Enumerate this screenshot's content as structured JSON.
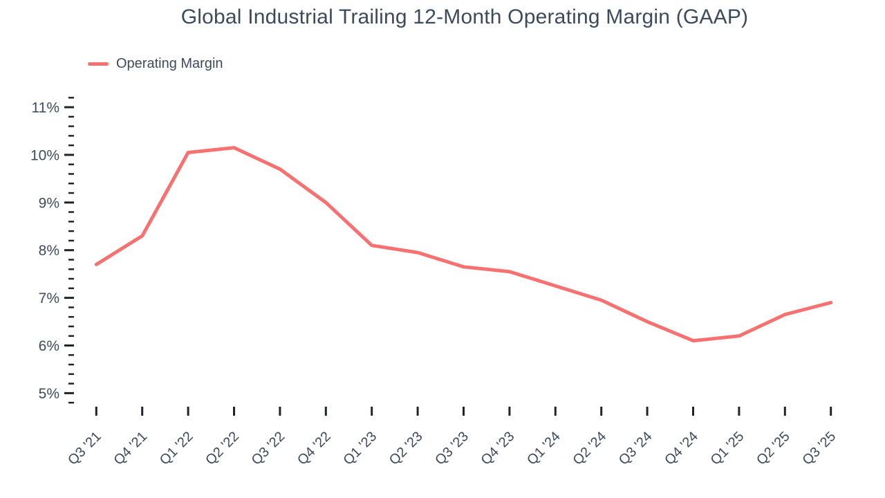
{
  "colors": {
    "line": "#F87171",
    "text": "#3D4A5C",
    "tick": "#1F2328",
    "background": "#FFFFFF"
  },
  "chart_data": {
    "type": "line",
    "title": "Global Industrial Trailing 12-Month Operating Margin (GAAP)",
    "legend_position": "top-left",
    "grid": false,
    "categories": [
      "Q3 '21",
      "Q4 '21",
      "Q1 '22",
      "Q2 '22",
      "Q3 '22",
      "Q4 '22",
      "Q1 '23",
      "Q2 '23",
      "Q3 '23",
      "Q4 '23",
      "Q1 '24",
      "Q2 '24",
      "Q3 '24",
      "Q4 '24",
      "Q1 '25",
      "Q2 '25",
      "Q3 '25"
    ],
    "series": [
      {
        "name": "Operating Margin",
        "color": "#F87171",
        "values": [
          7.7,
          8.3,
          10.05,
          10.15,
          9.7,
          9.0,
          8.1,
          7.95,
          7.65,
          7.55,
          7.25,
          6.95,
          6.5,
          6.1,
          6.2,
          6.65,
          6.9
        ]
      }
    ],
    "xlabel": "",
    "ylabel": "",
    "ylim": [
      4.8,
      11.2
    ],
    "y_major_step": 1,
    "y_minor_step": 0.2,
    "y_major_labels": [
      "5%",
      "6%",
      "7%",
      "8%",
      "9%",
      "10%",
      "11%"
    ],
    "y_tick_suffix": "%"
  }
}
